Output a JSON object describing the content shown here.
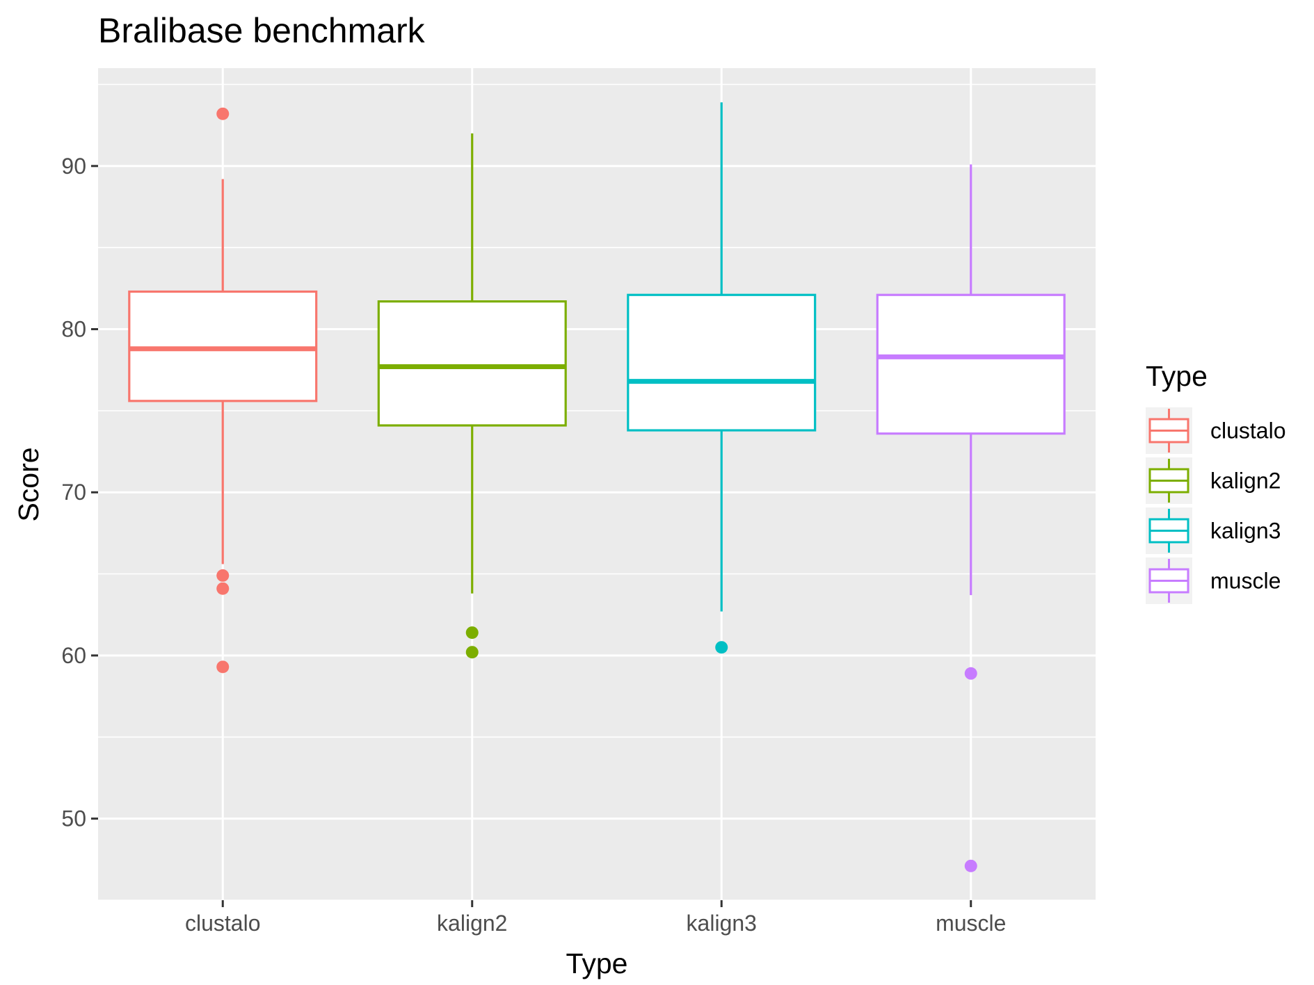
{
  "chart_data": {
    "type": "boxplot",
    "title": "Bralibase benchmark",
    "xlabel": "Type",
    "ylabel": "Score",
    "ylim": [
      45,
      96
    ],
    "yticks": [
      50,
      60,
      70,
      80,
      90
    ],
    "grid": true,
    "legend": {
      "title": "Type",
      "position": "right",
      "entries": [
        "clustalo",
        "kalign2",
        "kalign3",
        "muscle"
      ]
    },
    "categories": [
      "clustalo",
      "kalign2",
      "kalign3",
      "muscle"
    ],
    "series": [
      {
        "name": "clustalo",
        "color": "#F8766D",
        "q1": 75.6,
        "median": 78.8,
        "q3": 82.3,
        "whisker_low": 65.6,
        "whisker_high": 89.2,
        "outliers": [
          93.2,
          64.9,
          64.1,
          59.3
        ]
      },
      {
        "name": "kalign2",
        "color": "#7CAE00",
        "q1": 74.1,
        "median": 77.7,
        "q3": 81.7,
        "whisker_low": 63.8,
        "whisker_high": 92.0,
        "outliers": [
          61.4,
          60.2
        ]
      },
      {
        "name": "kalign3",
        "color": "#00BFC4",
        "q1": 73.8,
        "median": 76.8,
        "q3": 82.1,
        "whisker_low": 62.7,
        "whisker_high": 93.9,
        "outliers": [
          60.5
        ]
      },
      {
        "name": "muscle",
        "color": "#C77CFF",
        "q1": 73.6,
        "median": 78.3,
        "q3": 82.1,
        "whisker_low": 63.7,
        "whisker_high": 90.1,
        "outliers": [
          58.9,
          47.1
        ]
      }
    ]
  }
}
